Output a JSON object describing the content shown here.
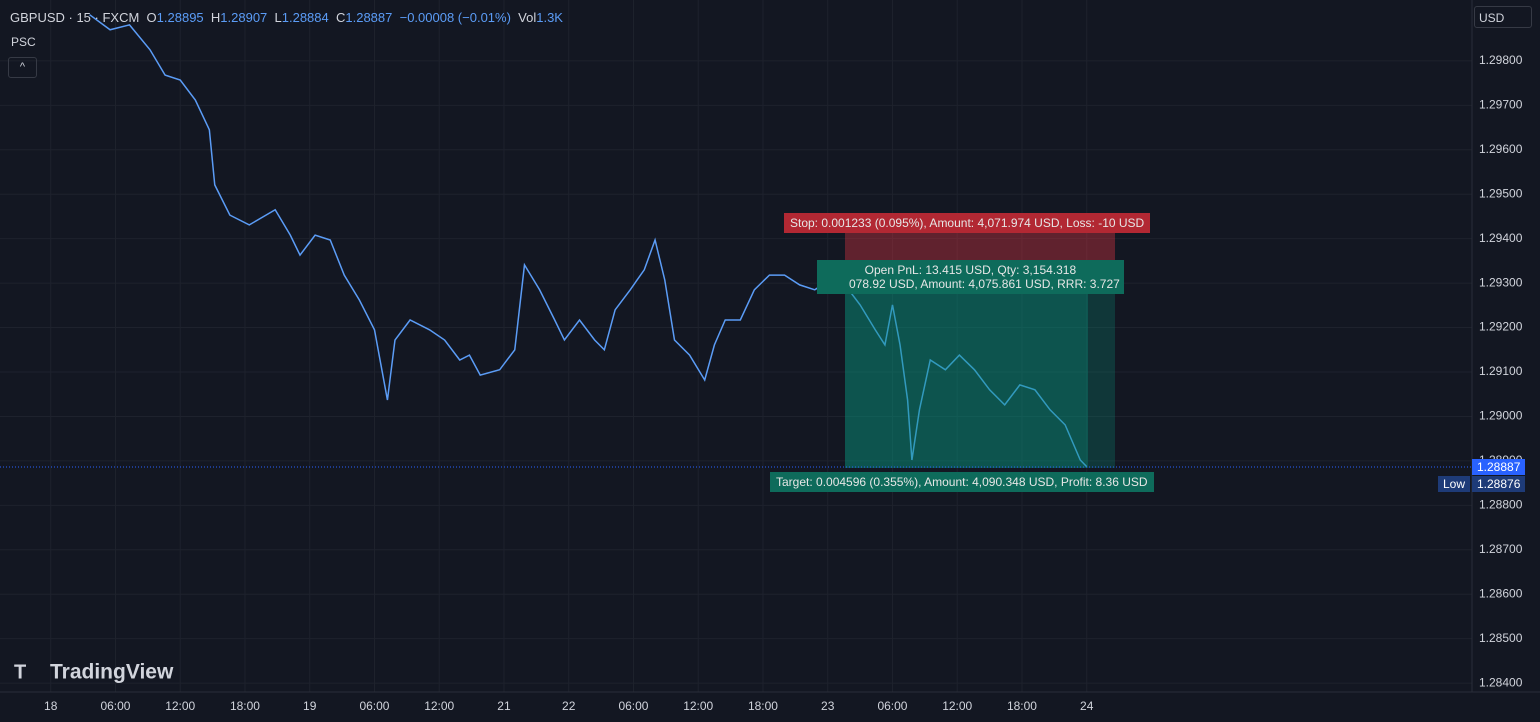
{
  "header": {
    "symbol": "GBPUSD · 15 · FXCM",
    "o_label": "O",
    "o": "1.28895",
    "h_label": "H",
    "h": "1.28907",
    "l_label": "L",
    "l": "1.28884",
    "c_label": "C",
    "c": "1.28887",
    "change": "−0.00008 (−0.01%)",
    "vol_label": "Vol",
    "vol": "1.3K",
    "indicator": "PSC",
    "currency": "USD",
    "logo": "TradingView"
  },
  "position": {
    "stop": "Stop:  0.001233 (0.095%), Amount: 4,071.974 USD, Loss: -10 USD",
    "open": "Open PnL: 13.415 USD, Qty: 3,154.318",
    "risk": "078.92 USD, Amount: 4,075.861 USD, RRR: 3.727",
    "target": "Target:  0.004596 (0.355%), Amount: 4,090.348 USD, Profit: 8.36 USD"
  },
  "price_tags": {
    "last": "1.28887",
    "low_label": "Low",
    "low": "1.28876"
  },
  "chart_data": {
    "type": "line",
    "color": "#5b9cf6",
    "x": [
      3.6,
      5.5,
      7.3,
      9.2,
      10.6,
      12.0,
      13.4,
      14.7,
      15.2,
      16.6,
      18.4,
      20.8,
      22.2,
      23.1,
      24.5,
      25.9,
      27.2,
      28.6,
      30.0,
      31.2,
      31.9,
      33.3,
      35.1,
      36.5,
      37.9,
      38.8,
      39.8,
      41.6,
      43.0,
      43.9,
      45.3,
      46.7,
      47.6,
      49.0,
      50.4,
      51.3,
      52.3,
      53.7,
      55.0,
      56.0,
      56.9,
      57.8,
      59.2,
      60.6,
      61.5,
      62.5,
      63.9,
      65.2,
      66.6,
      68.0,
      69.4,
      70.8,
      72.2,
      73.6,
      75.0,
      76.4,
      77.3,
      78.0,
      78.7,
      79.4,
      79.8,
      80.5,
      81.5,
      82.9,
      84.2,
      85.6,
      87.0,
      88.4,
      89.8,
      91.2,
      92.6,
      94.0,
      95.4,
      96.0
    ],
    "values": [
      1.29904,
      1.2987,
      1.29881,
      1.29825,
      1.29768,
      1.29757,
      1.29712,
      1.29645,
      1.29521,
      1.29453,
      1.29431,
      1.29465,
      1.29408,
      1.29363,
      1.29408,
      1.29397,
      1.29318,
      1.29262,
      1.29195,
      1.29037,
      1.29172,
      1.29217,
      1.29195,
      1.29172,
      1.29127,
      1.29138,
      1.29093,
      1.29105,
      1.2915,
      1.29341,
      1.29285,
      1.29217,
      1.29172,
      1.29217,
      1.29172,
      1.2915,
      1.2924,
      1.29285,
      1.2933,
      1.29397,
      1.29307,
      1.29172,
      1.29138,
      1.29082,
      1.29161,
      1.29217,
      1.29217,
      1.29285,
      1.29318,
      1.29318,
      1.29296,
      1.29285,
      1.29307,
      1.29296,
      1.29251,
      1.29195,
      1.29161,
      1.29251,
      1.29161,
      1.29037,
      1.28902,
      1.29015,
      1.29127,
      1.29105,
      1.29138,
      1.29105,
      1.2906,
      1.29026,
      1.29071,
      1.2906,
      1.29015,
      1.28981,
      1.28902,
      1.28887
    ],
    "xlim": [
      -4.7,
      131.7
    ],
    "ylim": [
      1.2838,
      1.29937
    ],
    "xticks": [
      {
        "value": 0,
        "label": "18"
      },
      {
        "value": 6,
        "label": "06:00"
      },
      {
        "value": 12,
        "label": "12:00"
      },
      {
        "value": 18,
        "label": "18:00"
      },
      {
        "value": 24,
        "label": "19"
      },
      {
        "value": 30,
        "label": "06:00"
      },
      {
        "value": 36,
        "label": "12:00"
      },
      {
        "value": 42,
        "label": "21"
      },
      {
        "value": 48,
        "label": "22"
      },
      {
        "value": 54,
        "label": "06:00"
      },
      {
        "value": 60,
        "label": "12:00"
      },
      {
        "value": 66,
        "label": "18:00"
      },
      {
        "value": 72,
        "label": "23"
      },
      {
        "value": 78,
        "label": "06:00"
      },
      {
        "value": 84,
        "label": "12:00"
      },
      {
        "value": 90,
        "label": "18:00"
      },
      {
        "value": 96,
        "label": "24"
      }
    ],
    "yticks": [
      {
        "value": 1.284,
        "label": "1.28400"
      },
      {
        "value": 1.285,
        "label": "1.28500"
      },
      {
        "value": 1.286,
        "label": "1.28600"
      },
      {
        "value": 1.287,
        "label": "1.28700"
      },
      {
        "value": 1.288,
        "label": "1.28800"
      },
      {
        "value": 1.289,
        "label": "1.28900"
      },
      {
        "value": 1.29,
        "label": "1.29000"
      },
      {
        "value": 1.291,
        "label": "1.29100"
      },
      {
        "value": 1.292,
        "label": "1.29200"
      },
      {
        "value": 1.293,
        "label": "1.29300"
      },
      {
        "value": 1.294,
        "label": "1.29400"
      },
      {
        "value": 1.295,
        "label": "1.29500"
      },
      {
        "value": 1.296,
        "label": "1.29600"
      },
      {
        "value": 1.297,
        "label": "1.29700"
      },
      {
        "value": 1.298,
        "label": "1.29800"
      }
    ]
  }
}
